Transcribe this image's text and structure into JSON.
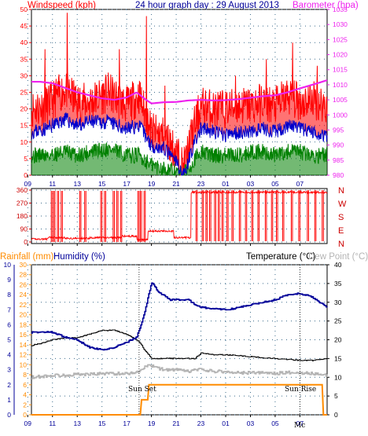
{
  "header": {
    "windspeed_label": "Windspeed (kph)",
    "title": "24 hour graph day : 29 August 2013",
    "barometer_label": "Barometer (hpa)",
    "rainfall_label": "Rainfall (mm)",
    "humidity_label": "Humidity (%)",
    "temperature_label": "Temperature (°C)",
    "dewpoint_label": "Dew Point (°C)"
  },
  "compass": [
    "N",
    "W",
    "S",
    "E",
    "N"
  ],
  "annotations": {
    "sunset": "Sun Set",
    "sunrise": "Sun Rise",
    "mc": "Mc"
  },
  "colors": {
    "red": "#ff0000",
    "blue": "#0000cc",
    "green": "#008000",
    "magenta": "#ee22ee",
    "orange": "#ff8c00",
    "navy": "#000099",
    "grey": "#b4b4b4",
    "black": "#000000",
    "rain_axis": "#ff8c00",
    "humidity_axis": "#000099",
    "temp_axis": "#007070",
    "dew_axis": "#b4b4b4"
  },
  "chart_data": [
    {
      "type": "line",
      "name": "wind-chart",
      "x_ticks": [
        "11",
        "13",
        "15",
        "17",
        "19",
        "21",
        "23",
        "01",
        "03",
        "05",
        "07",
        "09"
      ],
      "x_range_hours": [
        9.3,
        33.2
      ],
      "y_left": {
        "label": "Windspeed (kph)",
        "range": [
          0,
          50
        ],
        "ticks": [
          0,
          5,
          10,
          15,
          20,
          25,
          30,
          35,
          40,
          45,
          50
        ]
      },
      "y_right": {
        "label": "Barometer (hpa)",
        "range": [
          980,
          1035
        ],
        "ticks": [
          980,
          985,
          990,
          995,
          1000,
          1005,
          1010,
          1015,
          1020,
          1025,
          1030,
          1035
        ]
      },
      "series": [
        {
          "color": "red",
          "style": "gust",
          "knots": [
            [
              9.3,
              20
            ],
            [
              10.5,
              21
            ],
            [
              12,
              26
            ],
            [
              13,
              22
            ],
            [
              14,
              22
            ],
            [
              15.5,
              25
            ],
            [
              17,
              21
            ],
            [
              18,
              24
            ],
            [
              19,
              13
            ],
            [
              20,
              12
            ],
            [
              21,
              7
            ],
            [
              21.6,
              2
            ],
            [
              22.3,
              13
            ],
            [
              23,
              21
            ],
            [
              24,
              20
            ],
            [
              25,
              20
            ],
            [
              26,
              21
            ],
            [
              27,
              21
            ],
            [
              28,
              22
            ],
            [
              29,
              21
            ],
            [
              30,
              24
            ],
            [
              31,
              22
            ],
            [
              32,
              23
            ],
            [
              33.2,
              21
            ]
          ],
          "spike": [
            [
              12.2,
              49
            ],
            [
              18.6,
              48
            ],
            [
              10.4,
              38
            ],
            [
              16.4,
              38
            ],
            [
              30.4,
              40
            ],
            [
              28.3,
              35
            ],
            [
              32.4,
              33
            ],
            [
              20.1,
              27
            ],
            [
              25.8,
              30
            ]
          ]
        },
        {
          "color": "blue",
          "style": "avg",
          "knots": [
            [
              9.3,
              13
            ],
            [
              10.5,
              14
            ],
            [
              12,
              17
            ],
            [
              13,
              15
            ],
            [
              14,
              16
            ],
            [
              15.5,
              16
            ],
            [
              17,
              14
            ],
            [
              18,
              15
            ],
            [
              19,
              9
            ],
            [
              20,
              8
            ],
            [
              21,
              4
            ],
            [
              21.6,
              0
            ],
            [
              22.3,
              8
            ],
            [
              23,
              14
            ],
            [
              24,
              13
            ],
            [
              25,
              12
            ],
            [
              26,
              13
            ],
            [
              27,
              13
            ],
            [
              28,
              14
            ],
            [
              29,
              13
            ],
            [
              30,
              15
            ],
            [
              31,
              14
            ],
            [
              32,
              13
            ],
            [
              33.2,
              12
            ]
          ]
        },
        {
          "color": "green",
          "style": "low",
          "knots": [
            [
              9.3,
              6
            ],
            [
              10.5,
              6
            ],
            [
              12,
              7
            ],
            [
              13,
              6
            ],
            [
              14,
              7
            ],
            [
              15.5,
              8
            ],
            [
              17,
              6
            ],
            [
              18,
              6
            ],
            [
              19,
              3
            ],
            [
              20,
              2
            ],
            [
              21,
              1
            ],
            [
              21.6,
              0
            ],
            [
              22.3,
              4
            ],
            [
              23,
              7
            ],
            [
              24,
              6
            ],
            [
              25,
              6
            ],
            [
              26,
              6
            ],
            [
              27,
              7
            ],
            [
              28,
              7
            ],
            [
              29,
              6
            ],
            [
              30,
              7
            ],
            [
              31,
              7
            ],
            [
              32,
              6
            ],
            [
              33.2,
              6
            ]
          ]
        },
        {
          "color": "magenta",
          "style": "baro",
          "knots": [
            [
              9.3,
              1011
            ],
            [
              10,
              1011
            ],
            [
              11,
              1010.5
            ],
            [
              12,
              1009
            ],
            [
              13,
              1007.5
            ],
            [
              14,
              1006.5
            ],
            [
              15,
              1005.5
            ],
            [
              16,
              1005
            ],
            [
              17,
              1005.8
            ],
            [
              17.8,
              1007.5
            ],
            [
              18.5,
              1005.2
            ],
            [
              19,
              1003.8
            ],
            [
              20,
              1004.2
            ],
            [
              21,
              1004.3
            ],
            [
              22,
              1004.8
            ],
            [
              23,
              1005
            ],
            [
              24,
              1004.8
            ],
            [
              25,
              1004.9
            ],
            [
              26,
              1005.2
            ],
            [
              27,
              1005.7
            ],
            [
              28,
              1006.2
            ],
            [
              29,
              1006.5
            ],
            [
              30,
              1007.5
            ],
            [
              31,
              1008.8
            ],
            [
              32,
              1010
            ],
            [
              33.2,
              1011.5
            ]
          ]
        }
      ]
    },
    {
      "type": "scatter",
      "name": "direction-chart",
      "y_ticks": [
        0,
        90,
        180,
        270,
        360
      ],
      "y_range": [
        0,
        360
      ],
      "series": [
        {
          "color": "red",
          "blocks": [
            [
              9.3,
              10.6,
              20
            ],
            [
              10.6,
              12.0,
              30
            ],
            [
              12.0,
              14.0,
              25
            ],
            [
              14.0,
              16.6,
              30
            ],
            [
              16.6,
              17.8,
              40
            ],
            [
              17.8,
              18.7,
              15
            ],
            [
              18.7,
              20.8,
              75
            ],
            [
              20.8,
              22.2,
              30
            ],
            [
              22.2,
              33.2,
              345
            ]
          ],
          "spikes": [
            10.9,
            11.1,
            11.4,
            11.7,
            13.2,
            13.6,
            14.9,
            15.2,
            15.9,
            16.2,
            16.5,
            17.9,
            18.1,
            18.4,
            22.6,
            23.1,
            23.4,
            23.7,
            24.1,
            24.4,
            24.7,
            25.1,
            25.5,
            26.1,
            26.6,
            27.1,
            27.6,
            28.2,
            28.7,
            29.1,
            29.6,
            30.3,
            30.9,
            31.6,
            32.2,
            32.8
          ]
        }
      ]
    },
    {
      "type": "line",
      "name": "temperature-chart",
      "x_ticks": [
        "11",
        "13",
        "15",
        "17",
        "19",
        "21",
        "23",
        "01",
        "03",
        "05",
        "07",
        "09"
      ],
      "x_range_hours": [
        9.3,
        33.2
      ],
      "y_left_rain": {
        "label": "Rainfall (mm)",
        "range": [
          0,
          10
        ],
        "ticks": [
          0,
          1,
          2,
          3,
          4,
          5,
          6,
          7,
          8,
          9,
          10
        ]
      },
      "y_left_humidity": {
        "label": "Humidity (%)",
        "range": [
          0,
          30
        ],
        "ticks": [
          0,
          2,
          4,
          6,
          8,
          10,
          12,
          14,
          16,
          18,
          20,
          22,
          24,
          26,
          28,
          30
        ]
      },
      "y_right_temp": {
        "label": "Temperature (°C)",
        "range": [
          0,
          40
        ],
        "ticks": [
          0,
          5,
          10,
          15,
          20,
          25,
          30,
          35,
          40
        ]
      },
      "series": [
        {
          "color": "navy",
          "style": "humidity",
          "axis": "humidity",
          "knots": [
            [
              9.3,
              16.5
            ],
            [
              11,
              16.5
            ],
            [
              12,
              15.5
            ],
            [
              13,
              15
            ],
            [
              14,
              13.5
            ],
            [
              15,
              13
            ],
            [
              16,
              13.5
            ],
            [
              17,
              14.5
            ],
            [
              17.8,
              15.5
            ],
            [
              18.4,
              20
            ],
            [
              19,
              26.5
            ],
            [
              19.6,
              24.5
            ],
            [
              20.5,
              23
            ],
            [
              22,
              23
            ],
            [
              22.5,
              22
            ],
            [
              23,
              21.5
            ],
            [
              24,
              21.2
            ],
            [
              25,
              21
            ],
            [
              26,
              21.4
            ],
            [
              27,
              22
            ],
            [
              28,
              22.5
            ],
            [
              29,
              23
            ],
            [
              30,
              24
            ],
            [
              31,
              24.3
            ],
            [
              32,
              23.5
            ],
            [
              33.2,
              21.5
            ]
          ]
        },
        {
          "color": "black",
          "style": "temp",
          "axis": "temp",
          "knots": [
            [
              9.3,
              18.5
            ],
            [
              10,
              19
            ],
            [
              11,
              20
            ],
            [
              12,
              20.5
            ],
            [
              13,
              20.5
            ],
            [
              14,
              21.5
            ],
            [
              15,
              22.5
            ],
            [
              16,
              22.5
            ],
            [
              17,
              21.5
            ],
            [
              18,
              19.5
            ],
            [
              18.5,
              17
            ],
            [
              19,
              15
            ],
            [
              20,
              15
            ],
            [
              21,
              15
            ],
            [
              22,
              15
            ],
            [
              22.5,
              15
            ],
            [
              23,
              16.5
            ],
            [
              24,
              16
            ],
            [
              25,
              16
            ],
            [
              26,
              15.8
            ],
            [
              27,
              15.5
            ],
            [
              28,
              15.2
            ],
            [
              29,
              15
            ],
            [
              30,
              14.8
            ],
            [
              31,
              14.5
            ],
            [
              32,
              14.5
            ],
            [
              33.2,
              15
            ]
          ]
        },
        {
          "color": "grey",
          "style": "dew",
          "axis": "temp",
          "knots": [
            [
              9.3,
              10
            ],
            [
              10,
              10.2
            ],
            [
              11,
              10.5
            ],
            [
              12,
              10.5
            ],
            [
              13,
              10.8
            ],
            [
              14,
              10.8
            ],
            [
              15,
              11
            ],
            [
              16,
              11
            ],
            [
              17,
              11
            ],
            [
              18,
              11.5
            ],
            [
              18.5,
              13
            ],
            [
              19,
              13
            ],
            [
              20,
              12
            ],
            [
              21,
              12
            ],
            [
              22,
              11.5
            ],
            [
              22.5,
              12
            ],
            [
              23,
              12
            ],
            [
              24,
              11.6
            ],
            [
              25,
              11.5
            ],
            [
              26,
              11.2
            ],
            [
              27,
              11.2
            ],
            [
              28,
              11.2
            ],
            [
              29,
              11
            ],
            [
              30,
              11.3
            ],
            [
              31,
              11.2
            ],
            [
              32,
              11
            ],
            [
              33.2,
              10.5
            ]
          ]
        },
        {
          "color": "orange",
          "style": "rain",
          "axis": "rain",
          "knots": [
            [
              9.3,
              0
            ],
            [
              18.1,
              0
            ],
            [
              18.2,
              1
            ],
            [
              18.7,
              1
            ],
            [
              18.8,
              2
            ],
            [
              32.8,
              2
            ],
            [
              32.9,
              0
            ],
            [
              33.2,
              0
            ]
          ]
        }
      ],
      "annotation_hours": {
        "sunset": 18.0,
        "sunrise": 31.0
      }
    }
  ]
}
